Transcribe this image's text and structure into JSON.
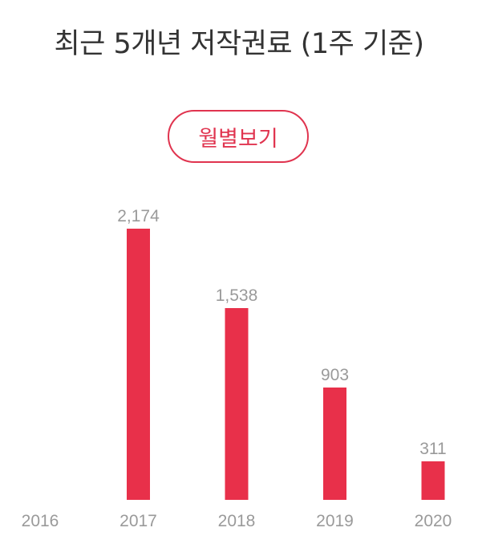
{
  "chart_data": {
    "type": "bar",
    "title": "최근 5개년 저작권료 (1주 기준)",
    "categories": [
      "2016",
      "2017",
      "2018",
      "2019",
      "2020"
    ],
    "values": [
      null,
      2174,
      1538,
      903,
      311
    ],
    "value_labels": [
      "",
      "2,174",
      "1,538",
      "903",
      "311"
    ],
    "bar_color": "#e8304a",
    "label_color": "#9a9a9a",
    "grid": false,
    "legend": "none"
  },
  "toggle_button": {
    "label": "월별보기",
    "color": "#e0344f"
  }
}
